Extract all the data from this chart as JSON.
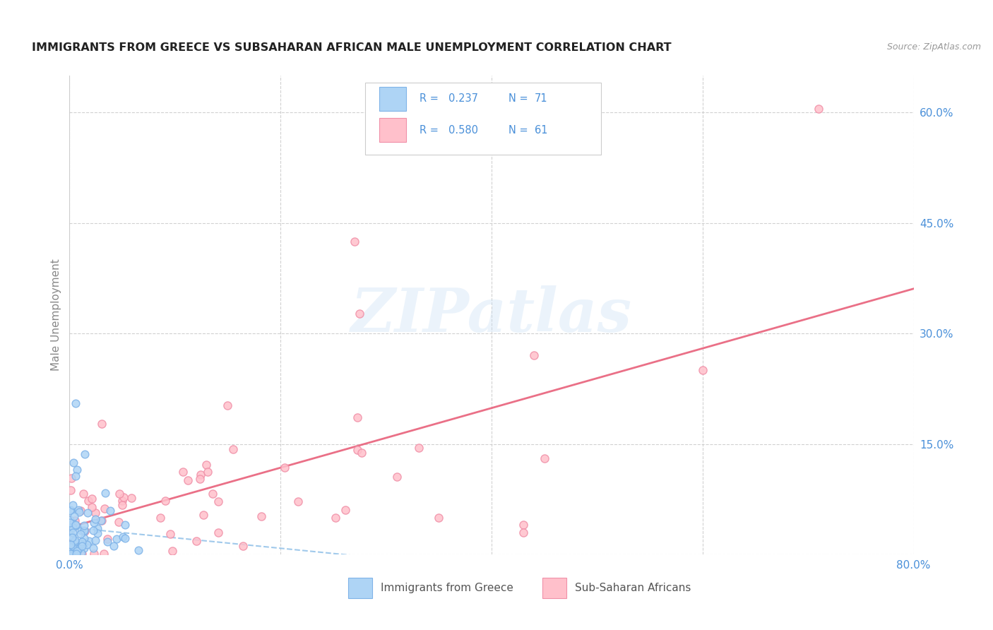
{
  "title": "IMMIGRANTS FROM GREECE VS SUBSAHARAN AFRICAN MALE UNEMPLOYMENT CORRELATION CHART",
  "source": "Source: ZipAtlas.com",
  "ylabel": "Male Unemployment",
  "xlim": [
    0.0,
    0.8
  ],
  "ylim": [
    0.0,
    0.65
  ],
  "ytick_vals": [
    0.0,
    0.15,
    0.3,
    0.45,
    0.6
  ],
  "xtick_vals": [
    0.0,
    0.2,
    0.4,
    0.6,
    0.8
  ],
  "series1_face_color": "#aed4f5",
  "series1_edge_color": "#7fb3e8",
  "series2_face_color": "#ffc0cb",
  "series2_edge_color": "#f090a8",
  "trendline1_color": "#90c0e8",
  "trendline2_color": "#e8607a",
  "legend_r1": "0.237",
  "legend_n1": "71",
  "legend_r2": "0.580",
  "legend_n2": "61",
  "legend_label1": "Immigrants from Greece",
  "legend_label2": "Sub-Saharan Africans",
  "watermark_text": "ZIPatlas",
  "background_color": "#ffffff",
  "grid_color": "#cccccc",
  "r1": 0.237,
  "n1": 71,
  "r2": 0.58,
  "n2": 61,
  "title_color": "#222222",
  "tick_label_color": "#4a90d9",
  "source_color": "#999999",
  "ylabel_color": "#888888",
  "legend_text_color": "#4a90d9"
}
